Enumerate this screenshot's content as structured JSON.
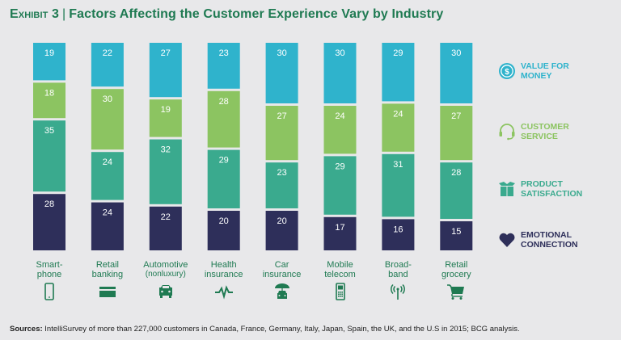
{
  "title": {
    "exhibit": "Exhibit 3",
    "separator": "|",
    "text": "Factors Affecting the Customer Experience Vary by Industry"
  },
  "colors": {
    "value_for_money": "#2fb3cc",
    "customer_service": "#8cc461",
    "product_satisfaction": "#3aaa8e",
    "emotional_connection": "#2e2f5a",
    "accent_text": "#1f7a52"
  },
  "chart_data": {
    "type": "bar",
    "stacked": true,
    "title": "Factors Affecting the Customer Experience Vary by Industry",
    "xlabel": "",
    "ylabel": "",
    "ylim": [
      0,
      100
    ],
    "grid": false,
    "legend_position": "right",
    "categories": [
      {
        "line1": "Smart-",
        "line2": "phone",
        "icon": "smartphone-icon"
      },
      {
        "line1": "Retail",
        "line2": "banking",
        "icon": "credit-card-icon"
      },
      {
        "line1": "Automotive",
        "line2": "(nonluxury)",
        "icon": "car-icon"
      },
      {
        "line1": "Health",
        "line2": "insurance",
        "icon": "heartbeat-icon"
      },
      {
        "line1": "Car",
        "line2": "insurance",
        "icon": "car-umbrella-icon"
      },
      {
        "line1": "Mobile",
        "line2": "telecom",
        "icon": "mobile-phone-icon"
      },
      {
        "line1": "Broad-",
        "line2": "band",
        "icon": "antenna-icon"
      },
      {
        "line1": "Retail",
        "line2": "grocery",
        "icon": "shopping-cart-icon"
      }
    ],
    "series": [
      {
        "key": "value_for_money",
        "name": "Value for money",
        "values": [
          19,
          22,
          27,
          23,
          30,
          30,
          29,
          30
        ]
      },
      {
        "key": "customer_service",
        "name": "Customer service",
        "values": [
          18,
          30,
          19,
          28,
          27,
          24,
          24,
          27
        ]
      },
      {
        "key": "product_satisfaction",
        "name": "Product satisfaction",
        "values": [
          35,
          24,
          32,
          29,
          23,
          29,
          31,
          28
        ]
      },
      {
        "key": "emotional_connection",
        "name": "Emotional connection",
        "values": [
          28,
          24,
          22,
          20,
          20,
          17,
          16,
          15
        ]
      }
    ]
  },
  "legend": [
    {
      "key": "value_for_money",
      "line1": "Value for",
      "line2": "money",
      "icon": "dollar-coin-icon"
    },
    {
      "key": "customer_service",
      "line1": "Customer",
      "line2": "service",
      "icon": "headset-icon"
    },
    {
      "key": "product_satisfaction",
      "line1": "Product",
      "line2": "satisfaction",
      "icon": "open-box-icon"
    },
    {
      "key": "emotional_connection",
      "line1": "Emotional",
      "line2": "connection",
      "icon": "heart-icon"
    }
  ],
  "source": {
    "label": "Sources:",
    "text": " IntelliSurvey of more than 227,000 customers in Canada, France, Germany, Italy, Japan, Spain, the UK, and the U.S in 2015; BCG analysis."
  }
}
